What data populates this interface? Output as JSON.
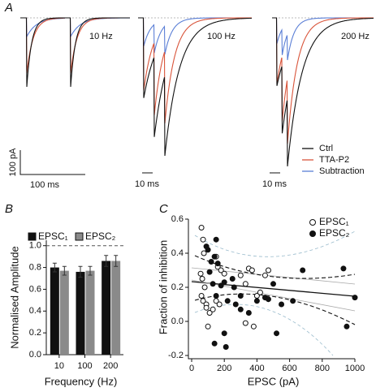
{
  "panel_labels": [
    "A",
    "B",
    "C"
  ],
  "traces": {
    "frequencies": [
      "10 Hz",
      "100 Hz",
      "200 Hz"
    ],
    "legend": [
      {
        "name": "Ctrl",
        "color": "#111111"
      },
      {
        "name": "TTA-P2",
        "color": "#d9553b"
      },
      {
        "name": "Subtraction",
        "color": "#5b7fd6"
      }
    ],
    "scale_bars": {
      "amplitude": "100 pA",
      "time": [
        "100 ms",
        "10 ms",
        "10 ms"
      ]
    }
  },
  "chart_data": [
    {
      "type": "bar",
      "ylabel": "Normalised Amplitude",
      "xlabel": "Frequency (Hz)",
      "categories": [
        "10",
        "100",
        "200"
      ],
      "series": [
        {
          "name": "EPSC₁",
          "color": "#111111",
          "values": [
            0.8,
            0.76,
            0.86
          ],
          "errors": [
            0.04,
            0.05,
            0.05
          ]
        },
        {
          "name": "EPSC₂",
          "color": "#8a8a8a",
          "values": [
            0.77,
            0.77,
            0.86
          ],
          "errors": [
            0.04,
            0.04,
            0.05
          ]
        }
      ],
      "ylim": [
        0,
        1.05
      ],
      "yticks": [
        {
          "value": 0,
          "label": "0.0"
        },
        0.2,
        0.4,
        0.6,
        0.8,
        {
          "value": 1,
          "label": "1.0"
        }
      ],
      "reference_line": 1,
      "legend": "top"
    },
    {
      "type": "scatter",
      "xlabel": "EPSC (pA)",
      "ylabel": "Fraction of inhibition",
      "series": [
        {
          "name": "EPSC₁",
          "color": "#111111",
          "marker": "open",
          "x": [
            60,
            70,
            75,
            55,
            65,
            80,
            60,
            70,
            90,
            110,
            100,
            150,
            160,
            180,
            200,
            150,
            170,
            300,
            330,
            350,
            370,
            400,
            420,
            450,
            380,
            330,
            470,
            90,
            130
          ],
          "values": [
            0.55,
            0.48,
            0.4,
            0.28,
            0.25,
            0.2,
            0.15,
            0.12,
            0.1,
            0.05,
            -0.03,
            0.38,
            0.32,
            0.3,
            0.28,
            0.12,
            0.1,
            0.27,
            0.22,
            0.31,
            0.3,
            0.15,
            0.17,
            0.27,
            -0.03,
            -0.01,
            0.3,
            0.08,
            0.07
          ]
        },
        {
          "name": "EPSC₂",
          "color": "#111111",
          "marker": "filled",
          "x": [
            90,
            100,
            140,
            120,
            160,
            150,
            110,
            130,
            180,
            200,
            150,
            220,
            250,
            260,
            270,
            300,
            300,
            350,
            400,
            450,
            470,
            500,
            550,
            620,
            680,
            520,
            200,
            140,
            210,
            930,
            950,
            1000
          ],
          "values": [
            0.44,
            0.42,
            0.38,
            0.35,
            0.34,
            0.48,
            0.29,
            0.22,
            0.21,
            0.23,
            0.15,
            0.12,
            0.25,
            0.2,
            0.1,
            0.15,
            0.07,
            0.05,
            0.12,
            0.14,
            0.13,
            0.22,
            0.1,
            0.12,
            0.3,
            -0.07,
            -0.07,
            -0.13,
            -0.15,
            0.31,
            -0.03,
            0.14
          ]
        }
      ],
      "xlim": [
        0,
        1000
      ],
      "xticks": [
        0,
        200,
        400,
        600,
        800,
        1000
      ],
      "ylim": [
        -0.2,
        0.6
      ],
      "yticks": [
        -0.2,
        {
          "value": 0,
          "label": "0.0"
        },
        0.2,
        0.4,
        0.6
      ],
      "legend": "top right"
    }
  ]
}
